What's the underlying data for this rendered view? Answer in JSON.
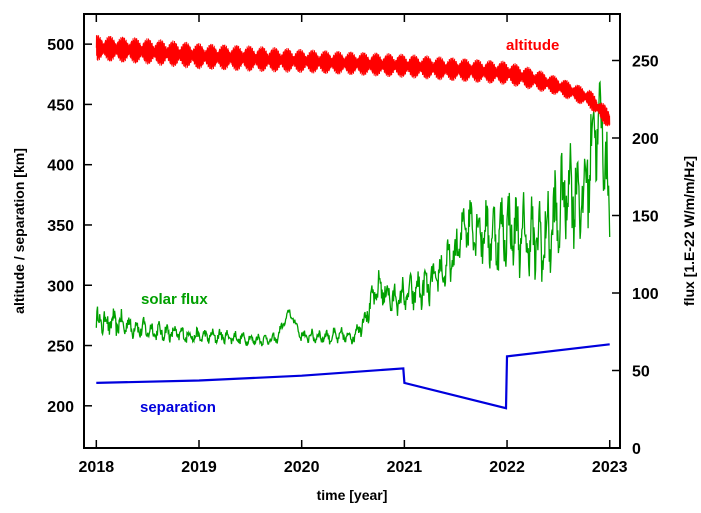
{
  "chart_data": {
    "type": "line",
    "xlabel": "time [year]",
    "ylabel_left": "altitude / separation [km]",
    "ylabel_right": "flux [1.E-22 W/m/m/Hz]",
    "xlim": [
      2017.88,
      2023.1
    ],
    "ylim_left": [
      165,
      525
    ],
    "ylim_right": [
      0,
      280
    ],
    "x_ticks": [
      "2018",
      "2019",
      "2020",
      "2021",
      "2022",
      "2023"
    ],
    "y_ticks_left": [
      "200",
      "250",
      "300",
      "350",
      "400",
      "450",
      "500"
    ],
    "y_ticks_right": [
      "0",
      "50",
      "100",
      "150",
      "200",
      "250"
    ],
    "grid": false,
    "series": [
      {
        "name": "altitude",
        "axis": "left",
        "color": "#ff0000",
        "x": [
          2018.0,
          2018.5,
          2019.0,
          2019.5,
          2020.0,
          2020.5,
          2021.0,
          2021.5,
          2022.0,
          2022.3,
          2022.5,
          2022.8,
          2023.0
        ],
        "center": [
          497,
          494,
          490,
          488,
          486,
          484,
          482,
          479,
          476,
          470,
          465,
          455,
          437
        ],
        "amplitude": [
          11,
          11,
          11,
          11,
          10,
          10,
          10,
          10,
          10,
          9,
          8,
          8,
          9
        ]
      },
      {
        "name": "solar flux",
        "axis": "right",
        "color": "#00a000",
        "x": [
          2018.0,
          2018.25,
          2018.5,
          2018.75,
          2019.0,
          2019.25,
          2019.5,
          2019.75,
          2019.88,
          2020.0,
          2020.25,
          2020.5,
          2020.6,
          2020.75,
          2020.9,
          2021.0,
          2021.25,
          2021.5,
          2021.6,
          2021.75,
          2021.9,
          2022.0,
          2022.2,
          2022.35,
          2022.5,
          2022.6,
          2022.75,
          2022.85,
          2022.95,
          2023.0
        ],
        "y": [
          82,
          80,
          76,
          74,
          72,
          72,
          70,
          70,
          88,
          72,
          72,
          72,
          82,
          104,
          95,
          98,
          105,
          124,
          148,
          140,
          136,
          142,
          135,
          132,
          150,
          170,
          160,
          210,
          200,
          140
        ],
        "amplitude": [
          10,
          9,
          7,
          6,
          5,
          5,
          4,
          4,
          3,
          5,
          5,
          6,
          8,
          12,
          12,
          13,
          14,
          17,
          20,
          22,
          24,
          26,
          30,
          32,
          35,
          36,
          38,
          38,
          36,
          30
        ]
      },
      {
        "name": "separation",
        "axis": "left",
        "color": "#0000dd",
        "x": [
          2018.0,
          2019.0,
          2020.0,
          2020.99,
          2021.0,
          2021.99,
          2022.0,
          2023.0
        ],
        "y": [
          219,
          221,
          225,
          231,
          219,
          198,
          241,
          251
        ]
      }
    ]
  }
}
